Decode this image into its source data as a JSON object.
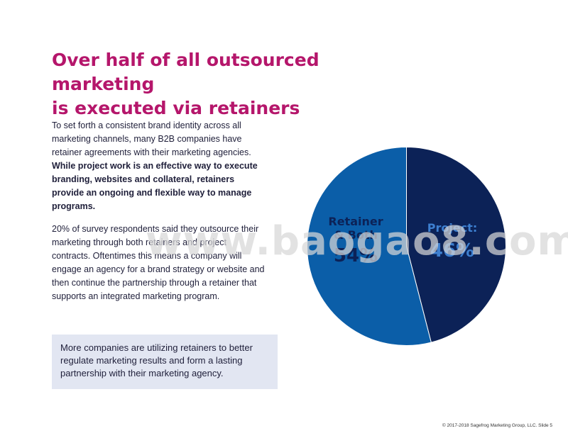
{
  "title": {
    "line1": "Over half of all outsourced marketing",
    "line2": "is executed via retainers"
  },
  "paragraph1": {
    "plain": "To set forth a consistent brand identity across all marketing channels, many B2B companies have retainer agreements with their marketing agencies. ",
    "bold": "While project work is an effective way to execute branding, websites and collateral, retainers provide an ongoing and flexible way to manage programs."
  },
  "paragraph2": "20% of survey respondents said they outsource their marketing through both retainers and project contracts. Oftentimes this means a company will engage an agency for a brand strategy or website and then continue the partnership through a retainer that supports an integrated marketing program.",
  "callout": "More companies are utilizing retainers to better regulate marketing results and form a lasting partnership with their marketing agency.",
  "watermark": "www.baogao8.com",
  "footer": "© 2017-2018 Sagefrog Marketing Group, LLC. Slide 5",
  "colors": {
    "title": "#b5166b",
    "retainer": "#0b5ea8",
    "project": "#0c2257",
    "callout_bg": "#e2e6f2"
  },
  "chart_data": {
    "type": "pie",
    "slices": [
      {
        "label": "Project:",
        "value": 46,
        "value_label": "46%",
        "color": "#0c2257"
      },
      {
        "label": "Retainer & Both",
        "value": 54,
        "value_label": "54%",
        "color": "#0b5ea8"
      }
    ]
  }
}
